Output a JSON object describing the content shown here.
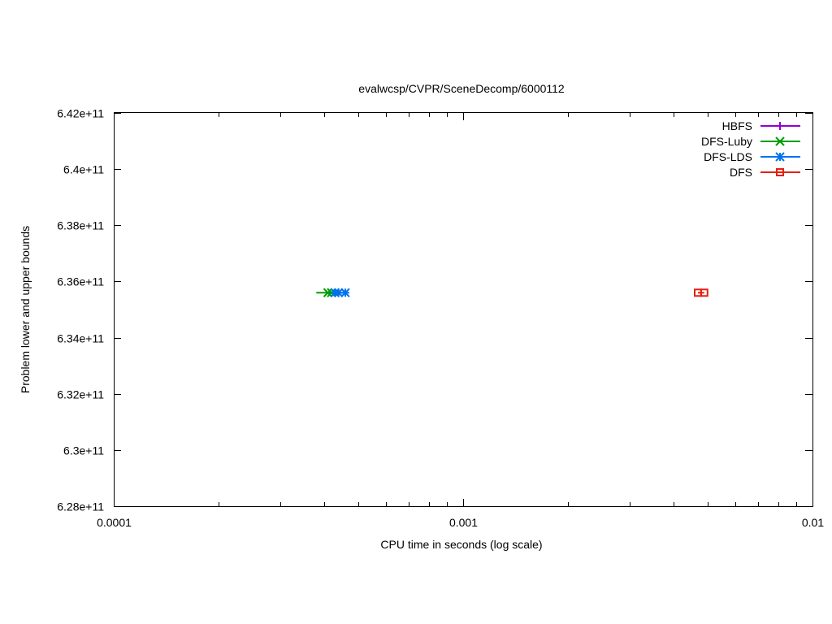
{
  "chart_data": {
    "type": "scatter",
    "title": "evalwcsp/CVPR/SceneDecomp/6000112",
    "xlabel": "CPU time in seconds (log scale)",
    "ylabel": "Problem lower and upper bounds",
    "x_scale": "log",
    "xlim": [
      0.0001,
      0.01
    ],
    "ylim": [
      628000000000,
      642000000000
    ],
    "x_ticks": [
      {
        "value": 0.0001,
        "label": "0.0001"
      },
      {
        "value": 0.001,
        "label": "0.001"
      },
      {
        "value": 0.01,
        "label": "0.01"
      }
    ],
    "y_ticks": [
      {
        "value": 628000000000,
        "label": "6.28e+11"
      },
      {
        "value": 630000000000,
        "label": "6.3e+11"
      },
      {
        "value": 632000000000,
        "label": "6.32e+11"
      },
      {
        "value": 634000000000,
        "label": "6.34e+11"
      },
      {
        "value": 636000000000,
        "label": "6.36e+11"
      },
      {
        "value": 638000000000,
        "label": "6.38e+11"
      },
      {
        "value": 640000000000,
        "label": "6.4e+11"
      },
      {
        "value": 642000000000,
        "label": "6.42e+11"
      }
    ],
    "grid": false,
    "legend_position": "top-right",
    "series": [
      {
        "name": "HBFS",
        "color": "#9400d3",
        "marker": "plus",
        "points": []
      },
      {
        "name": "DFS-Luby",
        "color": "#009e00",
        "marker": "cross",
        "points": [
          [
            0.00038,
            635600000000
          ],
          [
            0.00041,
            635600000000
          ],
          [
            0.00042,
            635600000000
          ]
        ]
      },
      {
        "name": "DFS-LDS",
        "color": "#0072ef",
        "marker": "star",
        "points": [
          [
            0.00043,
            635600000000
          ],
          [
            0.00044,
            635600000000
          ],
          [
            0.00046,
            635600000000
          ]
        ]
      },
      {
        "name": "DFS",
        "color": "#e51e10",
        "marker": "square",
        "points": [
          [
            0.0047,
            635600000000
          ],
          [
            0.0049,
            635600000000
          ]
        ]
      }
    ]
  }
}
